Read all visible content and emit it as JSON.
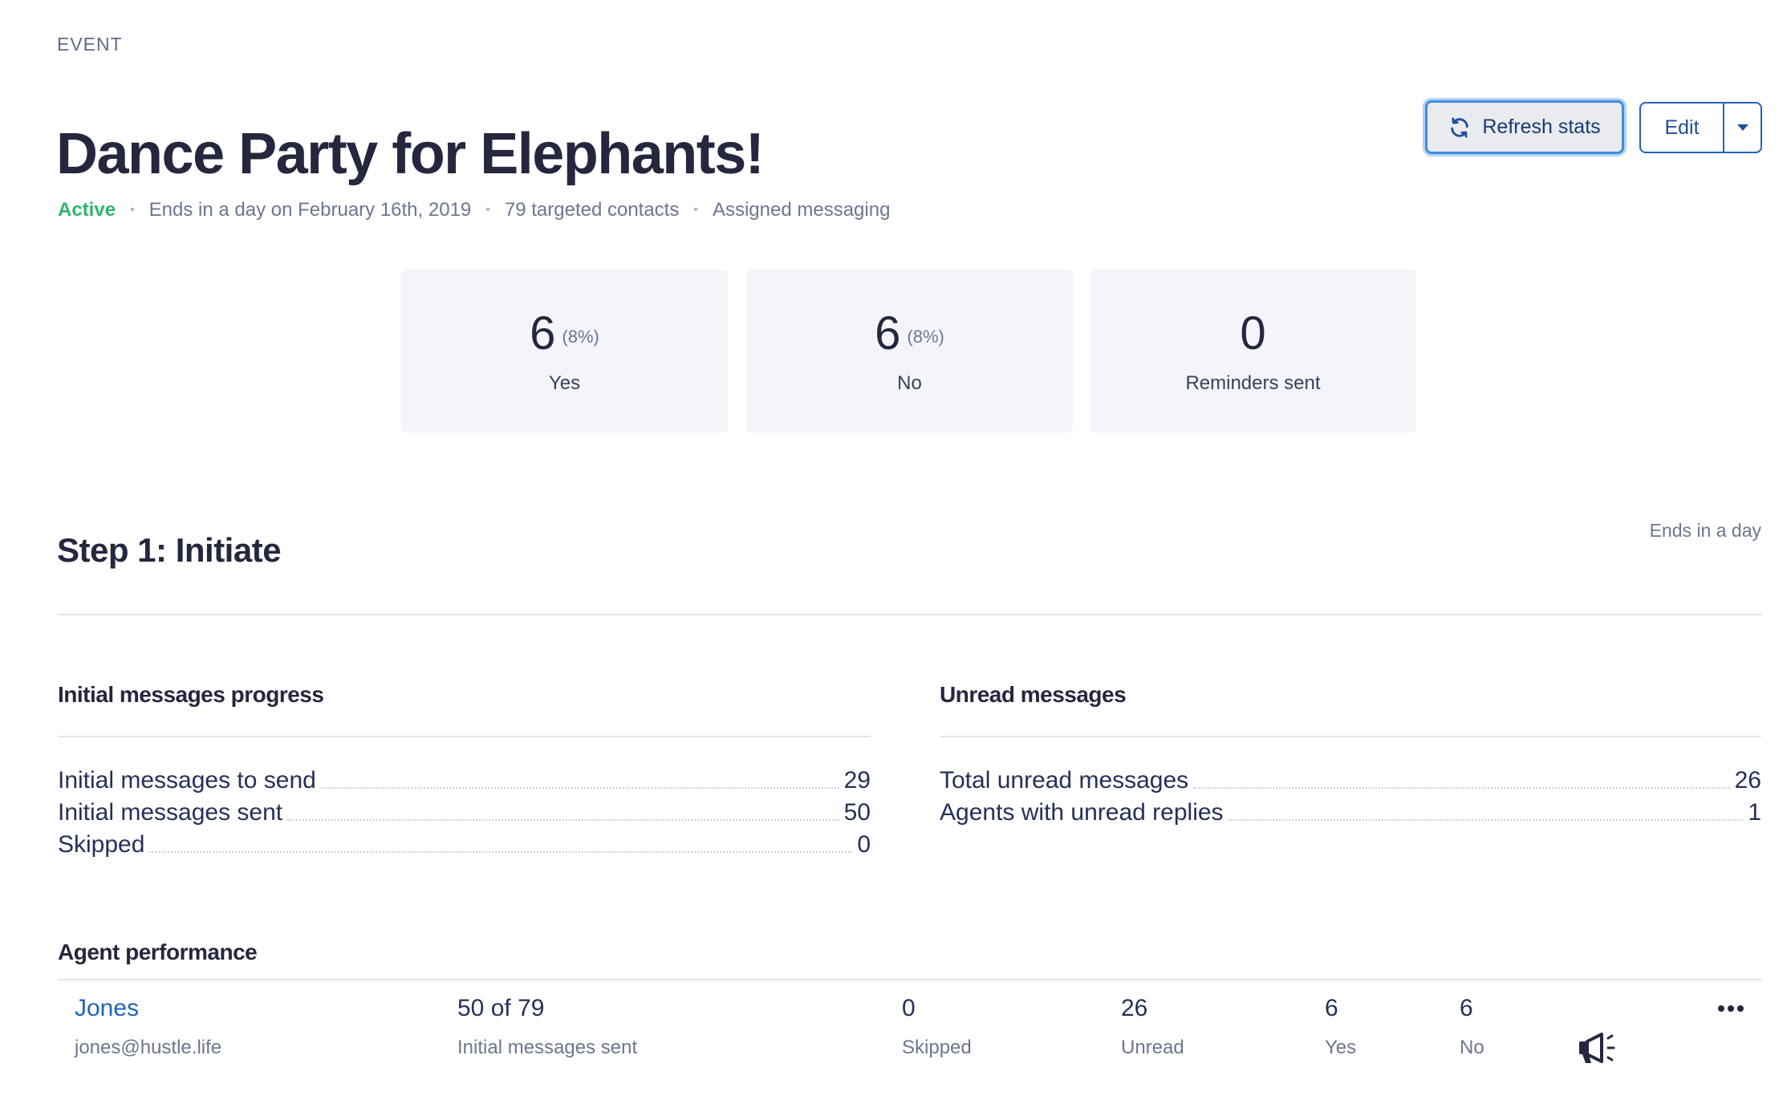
{
  "header": {
    "eyebrow": "EVENT",
    "title": "Dance Party for Elephants!",
    "status": "Active",
    "meta_items": [
      "Ends in a day on February 16th, 2019",
      "79 targeted contacts",
      "Assigned messaging"
    ]
  },
  "actions": {
    "refresh_label": "Refresh stats",
    "edit_label": "Edit"
  },
  "stats": [
    {
      "value": "6",
      "percent": "(8%)",
      "label": "Yes"
    },
    {
      "value": "6",
      "percent": "(8%)",
      "label": "No"
    },
    {
      "value": "0",
      "percent": "",
      "label": "Reminders sent"
    }
  ],
  "step": {
    "title": "Step 1: Initiate",
    "ends": "Ends in a day"
  },
  "progress": {
    "title": "Initial messages progress",
    "rows": [
      {
        "label": "Initial messages to send",
        "value": "29"
      },
      {
        "label": "Initial messages sent",
        "value": "50"
      },
      {
        "label": "Skipped",
        "value": "0"
      }
    ]
  },
  "unread": {
    "title": "Unread messages",
    "rows": [
      {
        "label": "Total unread messages",
        "value": "26"
      },
      {
        "label": "Agents with unread replies",
        "value": "1"
      }
    ]
  },
  "agents": {
    "title": "Agent performance",
    "rows": [
      {
        "name": "Jones",
        "email": "jones@hustle.life",
        "sent": "50 of 79",
        "sent_label": "Initial messages sent",
        "skipped": "0",
        "skipped_label": "Skipped",
        "unread": "26",
        "unread_label": "Unread",
        "yes": "6",
        "yes_label": "Yes",
        "no": "6",
        "no_label": "No"
      }
    ]
  },
  "icons": {
    "refresh": "refresh-icon",
    "dropdown": "caret-down-icon",
    "more": "more-horizontal-icon",
    "megaphone": "megaphone-icon"
  },
  "colors": {
    "active": "#2fb56e",
    "link": "#1f65b8",
    "focus": "#3e8de0",
    "card_bg": "#f3f5f9"
  }
}
